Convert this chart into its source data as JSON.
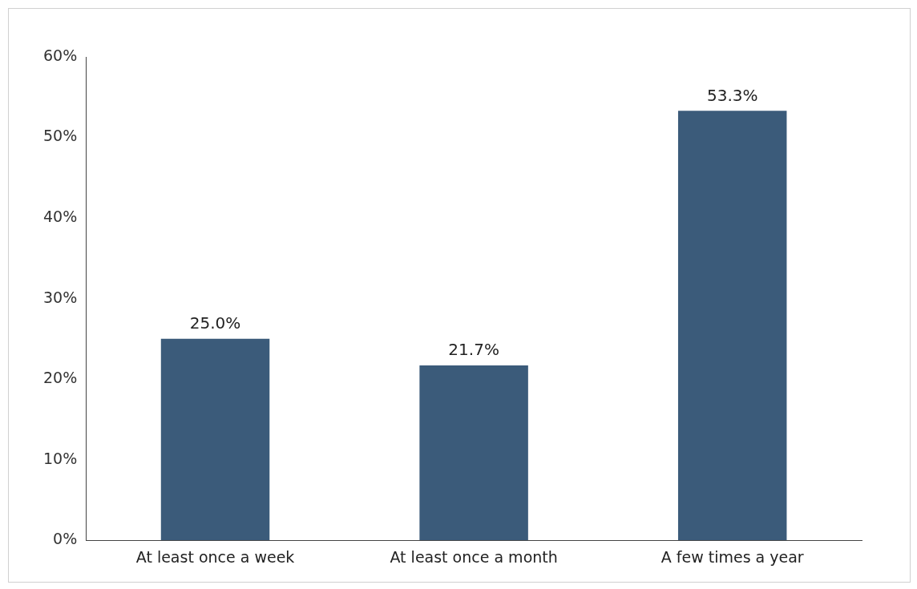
{
  "chart_data": {
    "type": "bar",
    "categories": [
      "At least once a week",
      "At least once a month",
      "A few times a year"
    ],
    "values": [
      25.0,
      21.7,
      53.3
    ],
    "color": "#3b5b7a",
    "value_labels": [
      "25.0%",
      "21.7%",
      "53.3%"
    ],
    "ylim": [
      0,
      60
    ],
    "yticks": [
      {
        "value": 0,
        "label": "0%"
      },
      {
        "value": 10,
        "label": "10%"
      },
      {
        "value": 20,
        "label": "20%"
      },
      {
        "value": 30,
        "label": "30%"
      },
      {
        "value": 40,
        "label": "40%"
      },
      {
        "value": 50,
        "label": "50%"
      },
      {
        "value": 60,
        "label": "60%"
      }
    ],
    "legend": false
  }
}
